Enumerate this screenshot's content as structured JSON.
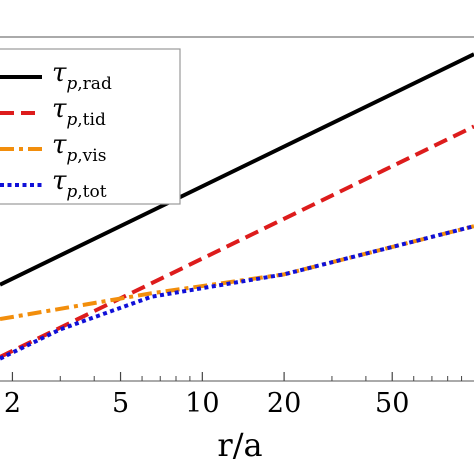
{
  "chart_data": {
    "type": "line",
    "xlabel": "r/a",
    "ylabel": "",
    "title": "",
    "x_scale": "log",
    "xlim": [
      1.8,
      100
    ],
    "x_ticks": [
      {
        "value": 2,
        "label": "2"
      },
      {
        "value": 5,
        "label": "5"
      },
      {
        "value": 10,
        "label": "10"
      },
      {
        "value": 20,
        "label": "20"
      },
      {
        "value": 50,
        "label": "50"
      }
    ],
    "y_scale": "log",
    "ylim": [
      0,
      1
    ],
    "legend_position": "top-left",
    "series": [
      {
        "name": "τ",
        "sub_italic": "p",
        "sub_text": ",rad",
        "color": "#000000",
        "dash": "solid",
        "x": [
          1.8,
          100
        ],
        "y": [
          0.28,
          0.95
        ]
      },
      {
        "name": "τ",
        "sub_italic": "p",
        "sub_text": ",tid",
        "color": "#dd1c1c",
        "dash": "dashed",
        "x": [
          1.8,
          100
        ],
        "y": [
          0.07,
          0.74
        ]
      },
      {
        "name": "τ",
        "sub_italic": "p",
        "sub_text": ",vis",
        "color": "#f28e0c",
        "dash": "dashdot",
        "x": [
          1.8,
          6.5,
          20,
          100
        ],
        "y": [
          0.18,
          0.255,
          0.31,
          0.45
        ]
      },
      {
        "name": "τ",
        "sub_italic": "p",
        "sub_text": ",tot",
        "color": "#1010d8",
        "dash": "dotted",
        "x": [
          1.8,
          3,
          6.5,
          20,
          100
        ],
        "y": [
          0.065,
          0.15,
          0.245,
          0.31,
          0.45
        ]
      }
    ]
  }
}
